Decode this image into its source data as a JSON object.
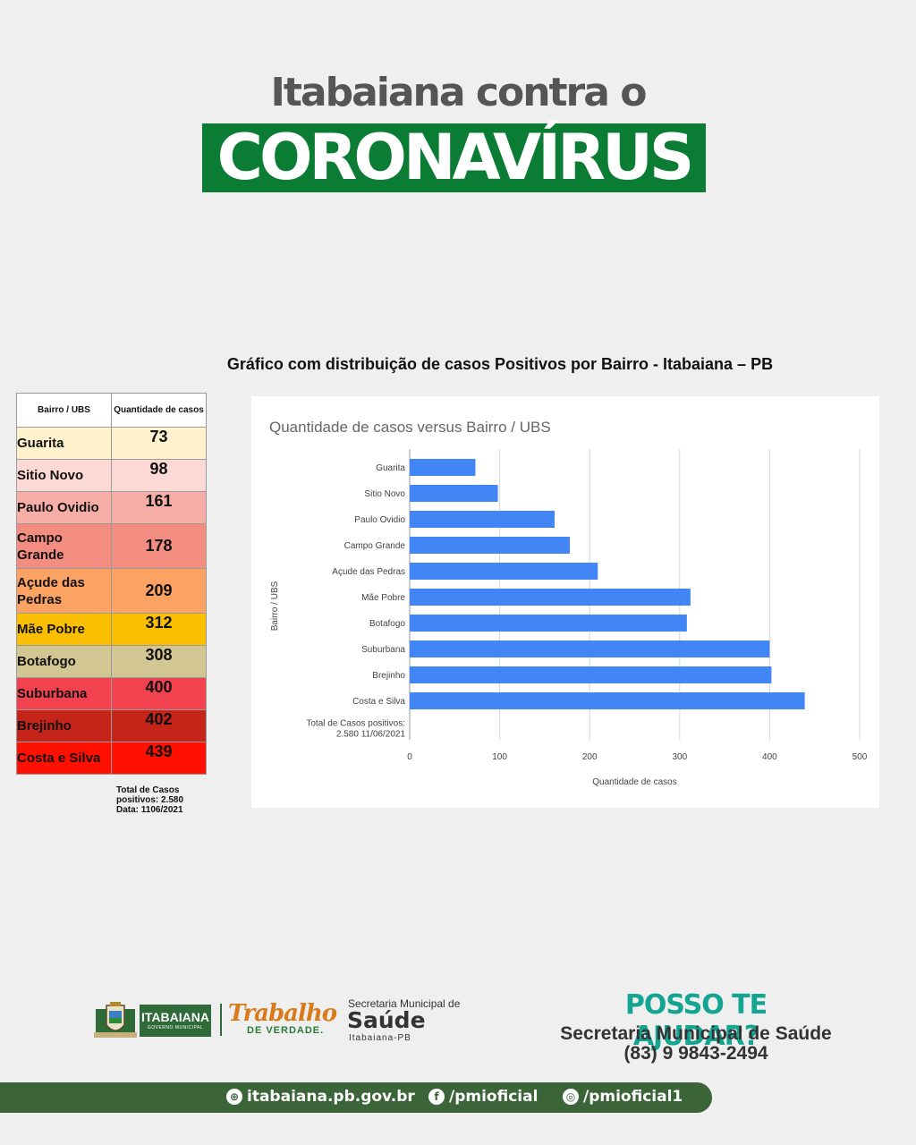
{
  "header": {
    "title_top": "Itabaiana contra o",
    "title_main": "CORONAVÍRUS"
  },
  "subtitle": "Gráfico com distribuição de casos Positivos por Bairro - Itabaiana – PB",
  "table": {
    "col1": "Bairro / UBS",
    "col2": "Quantidade de casos",
    "rows": [
      {
        "name": "Guarita",
        "value": "73",
        "color": "#fff2cc"
      },
      {
        "name": "Sitio Novo",
        "value": "98",
        "color": "#fcd9d5"
      },
      {
        "name": "Paulo Ovidio",
        "value": "161",
        "color": "#f6aea7"
      },
      {
        "name": "Campo Grande",
        "value": "178",
        "color": "#f38c81"
      },
      {
        "name": "Açude das Pedras",
        "value": "209",
        "color": "#fca263"
      },
      {
        "name": "Mãe Pobre",
        "value": "312",
        "color": "#fbbf02"
      },
      {
        "name": "Botafogo",
        "value": "308",
        "color": "#d2c692"
      },
      {
        "name": "Suburbana",
        "value": "400",
        "color": "#f2414f"
      },
      {
        "name": "Brejinho",
        "value": "402",
        "color": "#c52419"
      },
      {
        "name": "Costa e Silva",
        "value": "439",
        "color": "#ff1000"
      }
    ],
    "note_line1": "Total de Casos",
    "note_line2": "positivos: 2.580",
    "note_line3": "Data:  1106/2021"
  },
  "chart_data": {
    "type": "bar",
    "orientation": "horizontal",
    "title": "Quantidade de casos versus Bairro / UBS",
    "xlabel": "Quantidade de casos",
    "ylabel": "Bairro / UBS",
    "categories": [
      "Guarita",
      "Sitio Novo",
      "Paulo Ovidio",
      "Campo Grande",
      "Açude das Pedras",
      "Mãe Pobre",
      "Botafogo",
      "Suburbana",
      "Brejinho",
      "Costa e Silva"
    ],
    "values": [
      73,
      98,
      161,
      178,
      209,
      312,
      308,
      400,
      402,
      439
    ],
    "extra_category_line1": "Total de Casos positivos:",
    "extra_category_line2": "2.580 11/06/2021",
    "xlim": [
      0,
      500
    ],
    "xticks": [
      0,
      100,
      200,
      300,
      400,
      500
    ],
    "grid": true,
    "legend": "none",
    "bar_color": "#4285f4"
  },
  "footer": {
    "ita_logo": "ITABAIANA",
    "ita_sub": "GOVERNO MUNICIPAL",
    "trabalho": "Trabalho",
    "trabalho_sub": "DE VERDADE.",
    "sec_line1": "Secretaria Municipal de",
    "sec_line2": "Saúde",
    "sec_line3": "Itabaiana-PB",
    "help_title": "POSSO TE AJUDAR?",
    "help_line": "Secretaria Municipal de Saúde",
    "help_phone": "(83) 9 9843-2494",
    "site": "itabaiana.pb.gov.br",
    "facebook": "/pmioficial",
    "instagram": "/pmioficial1"
  }
}
